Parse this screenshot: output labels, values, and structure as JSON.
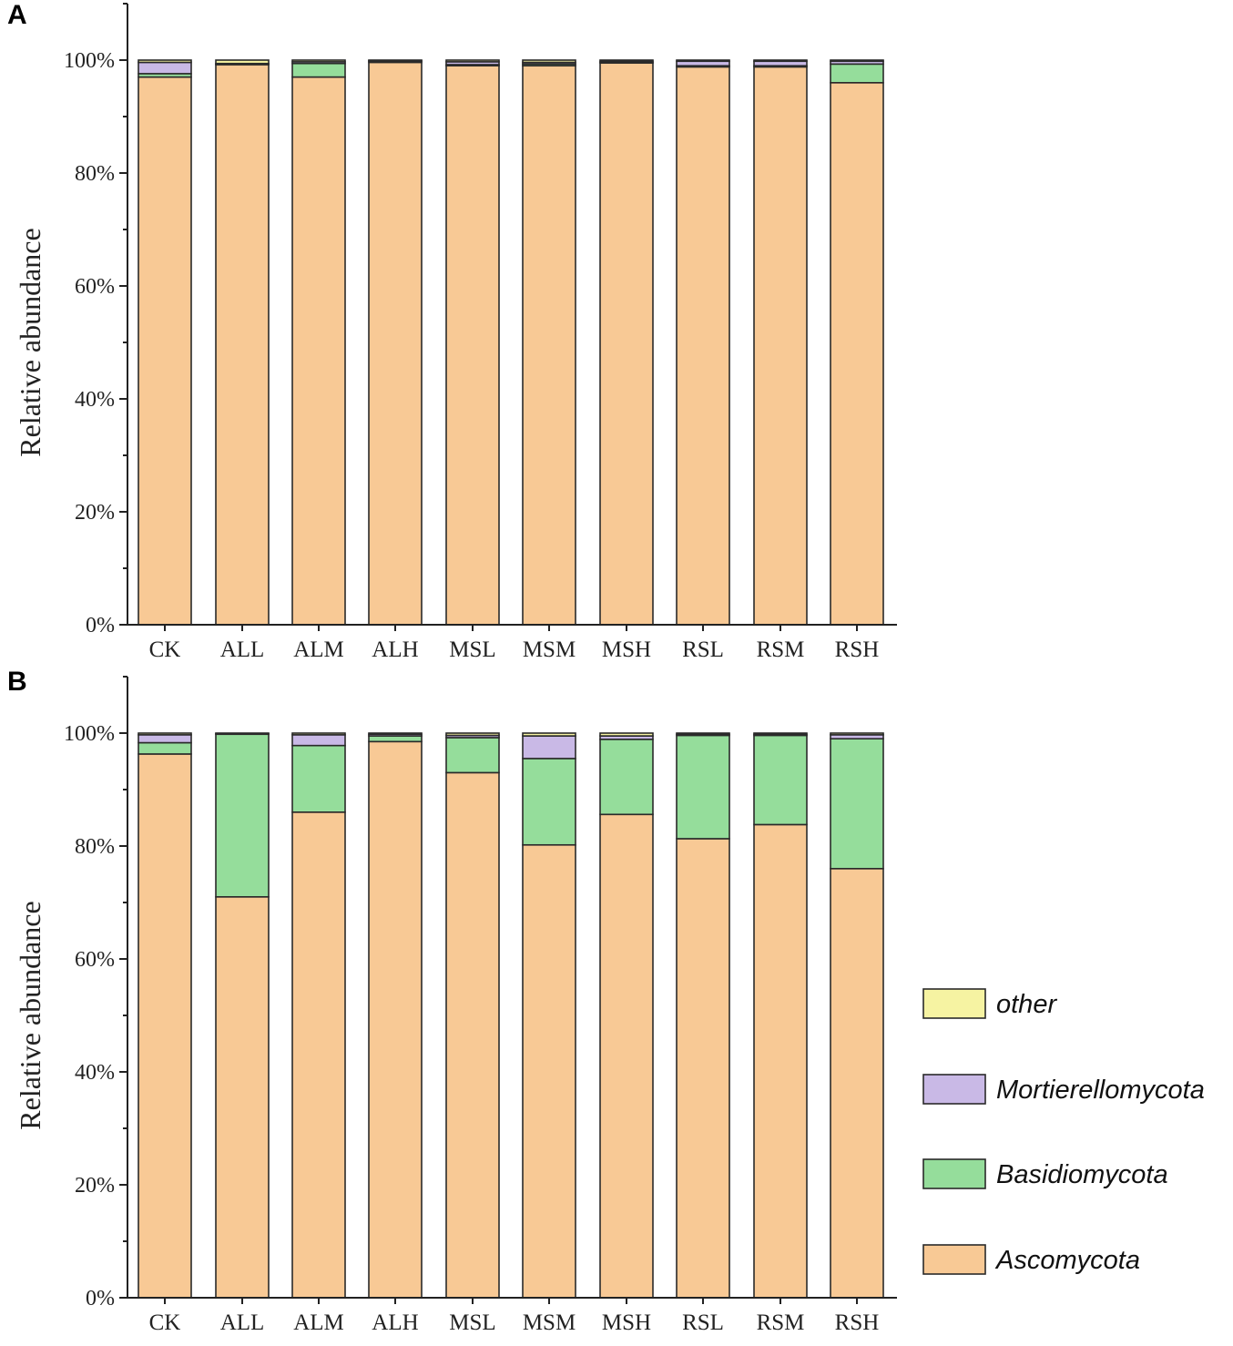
{
  "colors": {
    "Ascomycota": "#f8c995",
    "Basidiomycota": "#95dd9b",
    "Mortierellomycota": "#c9b9e6",
    "other": "#f6f3a2",
    "axis": "#222222",
    "bar_stroke": "#2a2a2a"
  },
  "legend": {
    "position": "right",
    "entries": [
      {
        "name": "other",
        "label": "other"
      },
      {
        "name": "Mortierellomycota",
        "label": "Mortierellomycota"
      },
      {
        "name": "Basidiomycota",
        "label": "Basidiomycota"
      },
      {
        "name": "Ascomycota",
        "label": "Ascomycota"
      }
    ]
  },
  "chart_data": [
    {
      "panel": "A",
      "type": "bar",
      "stacked": true,
      "title": "",
      "xlabel": "",
      "ylabel": "Relative abundance",
      "ylim": [
        0,
        110
      ],
      "yticks": [
        0,
        20,
        40,
        60,
        80,
        100
      ],
      "ytick_labels": [
        "0%",
        "20%",
        "40%",
        "60%",
        "80%",
        "100%"
      ],
      "categories": [
        "CK",
        "ALL",
        "ALM",
        "ALH",
        "MSL",
        "MSM",
        "MSH",
        "RSL",
        "RSM",
        "RSH"
      ],
      "series": [
        {
          "name": "Ascomycota",
          "values": [
            97.0,
            99.2,
            97.0,
            99.6,
            99.0,
            99.0,
            99.5,
            98.8,
            98.8,
            96.0
          ]
        },
        {
          "name": "Basidiomycota",
          "values": [
            0.6,
            0.1,
            2.4,
            0.2,
            0.2,
            0.3,
            0.1,
            0.2,
            0.2,
            3.3
          ]
        },
        {
          "name": "Mortierellomycota",
          "values": [
            2.0,
            0.1,
            0.3,
            0.1,
            0.5,
            0.3,
            0.2,
            0.8,
            0.8,
            0.5
          ]
        },
        {
          "name": "other",
          "values": [
            0.4,
            0.6,
            0.3,
            0.1,
            0.3,
            0.4,
            0.2,
            0.2,
            0.2,
            0.2
          ]
        }
      ]
    },
    {
      "panel": "B",
      "type": "bar",
      "stacked": true,
      "title": "",
      "xlabel": "",
      "ylabel": "Relative abundance",
      "ylim": [
        0,
        110
      ],
      "yticks": [
        0,
        20,
        40,
        60,
        80,
        100
      ],
      "ytick_labels": [
        "0%",
        "20%",
        "40%",
        "60%",
        "80%",
        "100%"
      ],
      "categories": [
        "CK",
        "ALL",
        "ALM",
        "ALH",
        "MSL",
        "MSM",
        "MSH",
        "RSL",
        "RSM",
        "RSH"
      ],
      "series": [
        {
          "name": "Ascomycota",
          "values": [
            96.3,
            71.0,
            86.0,
            98.5,
            93.0,
            80.2,
            85.6,
            81.3,
            83.8,
            76.0
          ]
        },
        {
          "name": "Basidiomycota",
          "values": [
            2.0,
            28.8,
            11.8,
            1.0,
            6.2,
            15.3,
            13.3,
            18.3,
            15.8,
            23.0
          ]
        },
        {
          "name": "Mortierellomycota",
          "values": [
            1.4,
            0.1,
            1.9,
            0.3,
            0.4,
            4.0,
            0.6,
            0.2,
            0.2,
            0.7
          ]
        },
        {
          "name": "other",
          "values": [
            0.3,
            0.1,
            0.3,
            0.2,
            0.4,
            0.5,
            0.5,
            0.2,
            0.2,
            0.3
          ]
        }
      ]
    }
  ]
}
